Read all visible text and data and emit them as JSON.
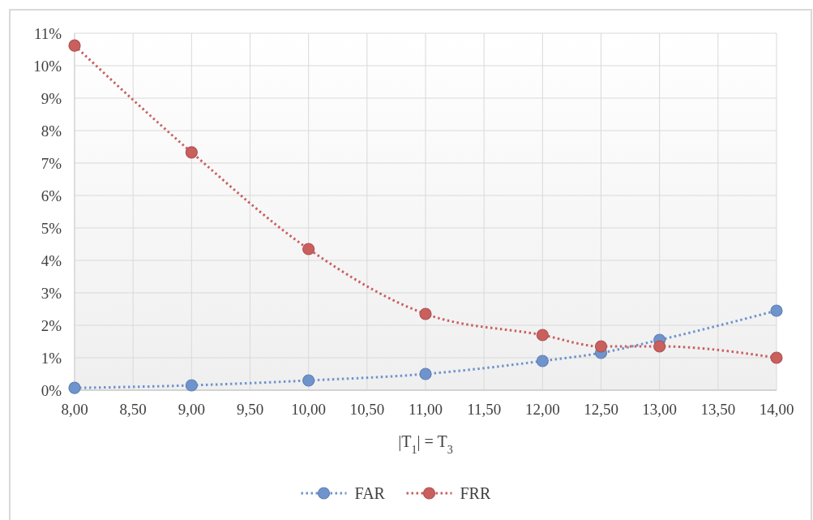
{
  "chart_data": {
    "type": "line",
    "xlabel": "|T$_{1}$| = T$_{3}$",
    "xlim": [
      8,
      14
    ],
    "xticks": [
      {
        "value": 8,
        "label": "8,00"
      },
      {
        "value": 8.5,
        "label": "8,50"
      },
      {
        "value": 9,
        "label": "9,00"
      },
      {
        "value": 9.5,
        "label": "9,50"
      },
      {
        "value": 10,
        "label": "10,00"
      },
      {
        "value": 10.5,
        "label": "10,50"
      },
      {
        "value": 11,
        "label": "11,00"
      },
      {
        "value": 11.5,
        "label": "11,50"
      },
      {
        "value": 12,
        "label": "12,00"
      },
      {
        "value": 12.5,
        "label": "12,50"
      },
      {
        "value": 13,
        "label": "13,00"
      },
      {
        "value": 13.5,
        "label": "13,50"
      },
      {
        "value": 14,
        "label": "14,00"
      }
    ],
    "ylim": [
      0,
      11
    ],
    "yticks": [
      {
        "value": 0,
        "label": "0%"
      },
      {
        "value": 1,
        "label": "1%"
      },
      {
        "value": 2,
        "label": "2%"
      },
      {
        "value": 3,
        "label": "3%"
      },
      {
        "value": 4,
        "label": "4%"
      },
      {
        "value": 5,
        "label": "5%"
      },
      {
        "value": 6,
        "label": "6%"
      },
      {
        "value": 7,
        "label": "7%"
      },
      {
        "value": 8,
        "label": "8%"
      },
      {
        "value": 9,
        "label": "9%"
      },
      {
        "value": 10,
        "label": "10%"
      },
      {
        "value": 11,
        "label": "11%"
      }
    ],
    "x": [
      8,
      9,
      10,
      11,
      12,
      12.5,
      13,
      14
    ],
    "series": [
      {
        "name": "FAR",
        "color": "#6f94cd",
        "values": [
          0.07,
          0.15,
          0.3,
          0.5,
          0.9,
          1.15,
          1.55,
          2.45
        ]
      },
      {
        "name": "FRR",
        "color": "#c9605e",
        "values": [
          10.62,
          7.33,
          4.35,
          2.35,
          1.7,
          1.35,
          1.35,
          1.0
        ]
      }
    ],
    "grid": true,
    "legend": "bottom",
    "marker": "circle",
    "line_style": "dotted"
  }
}
